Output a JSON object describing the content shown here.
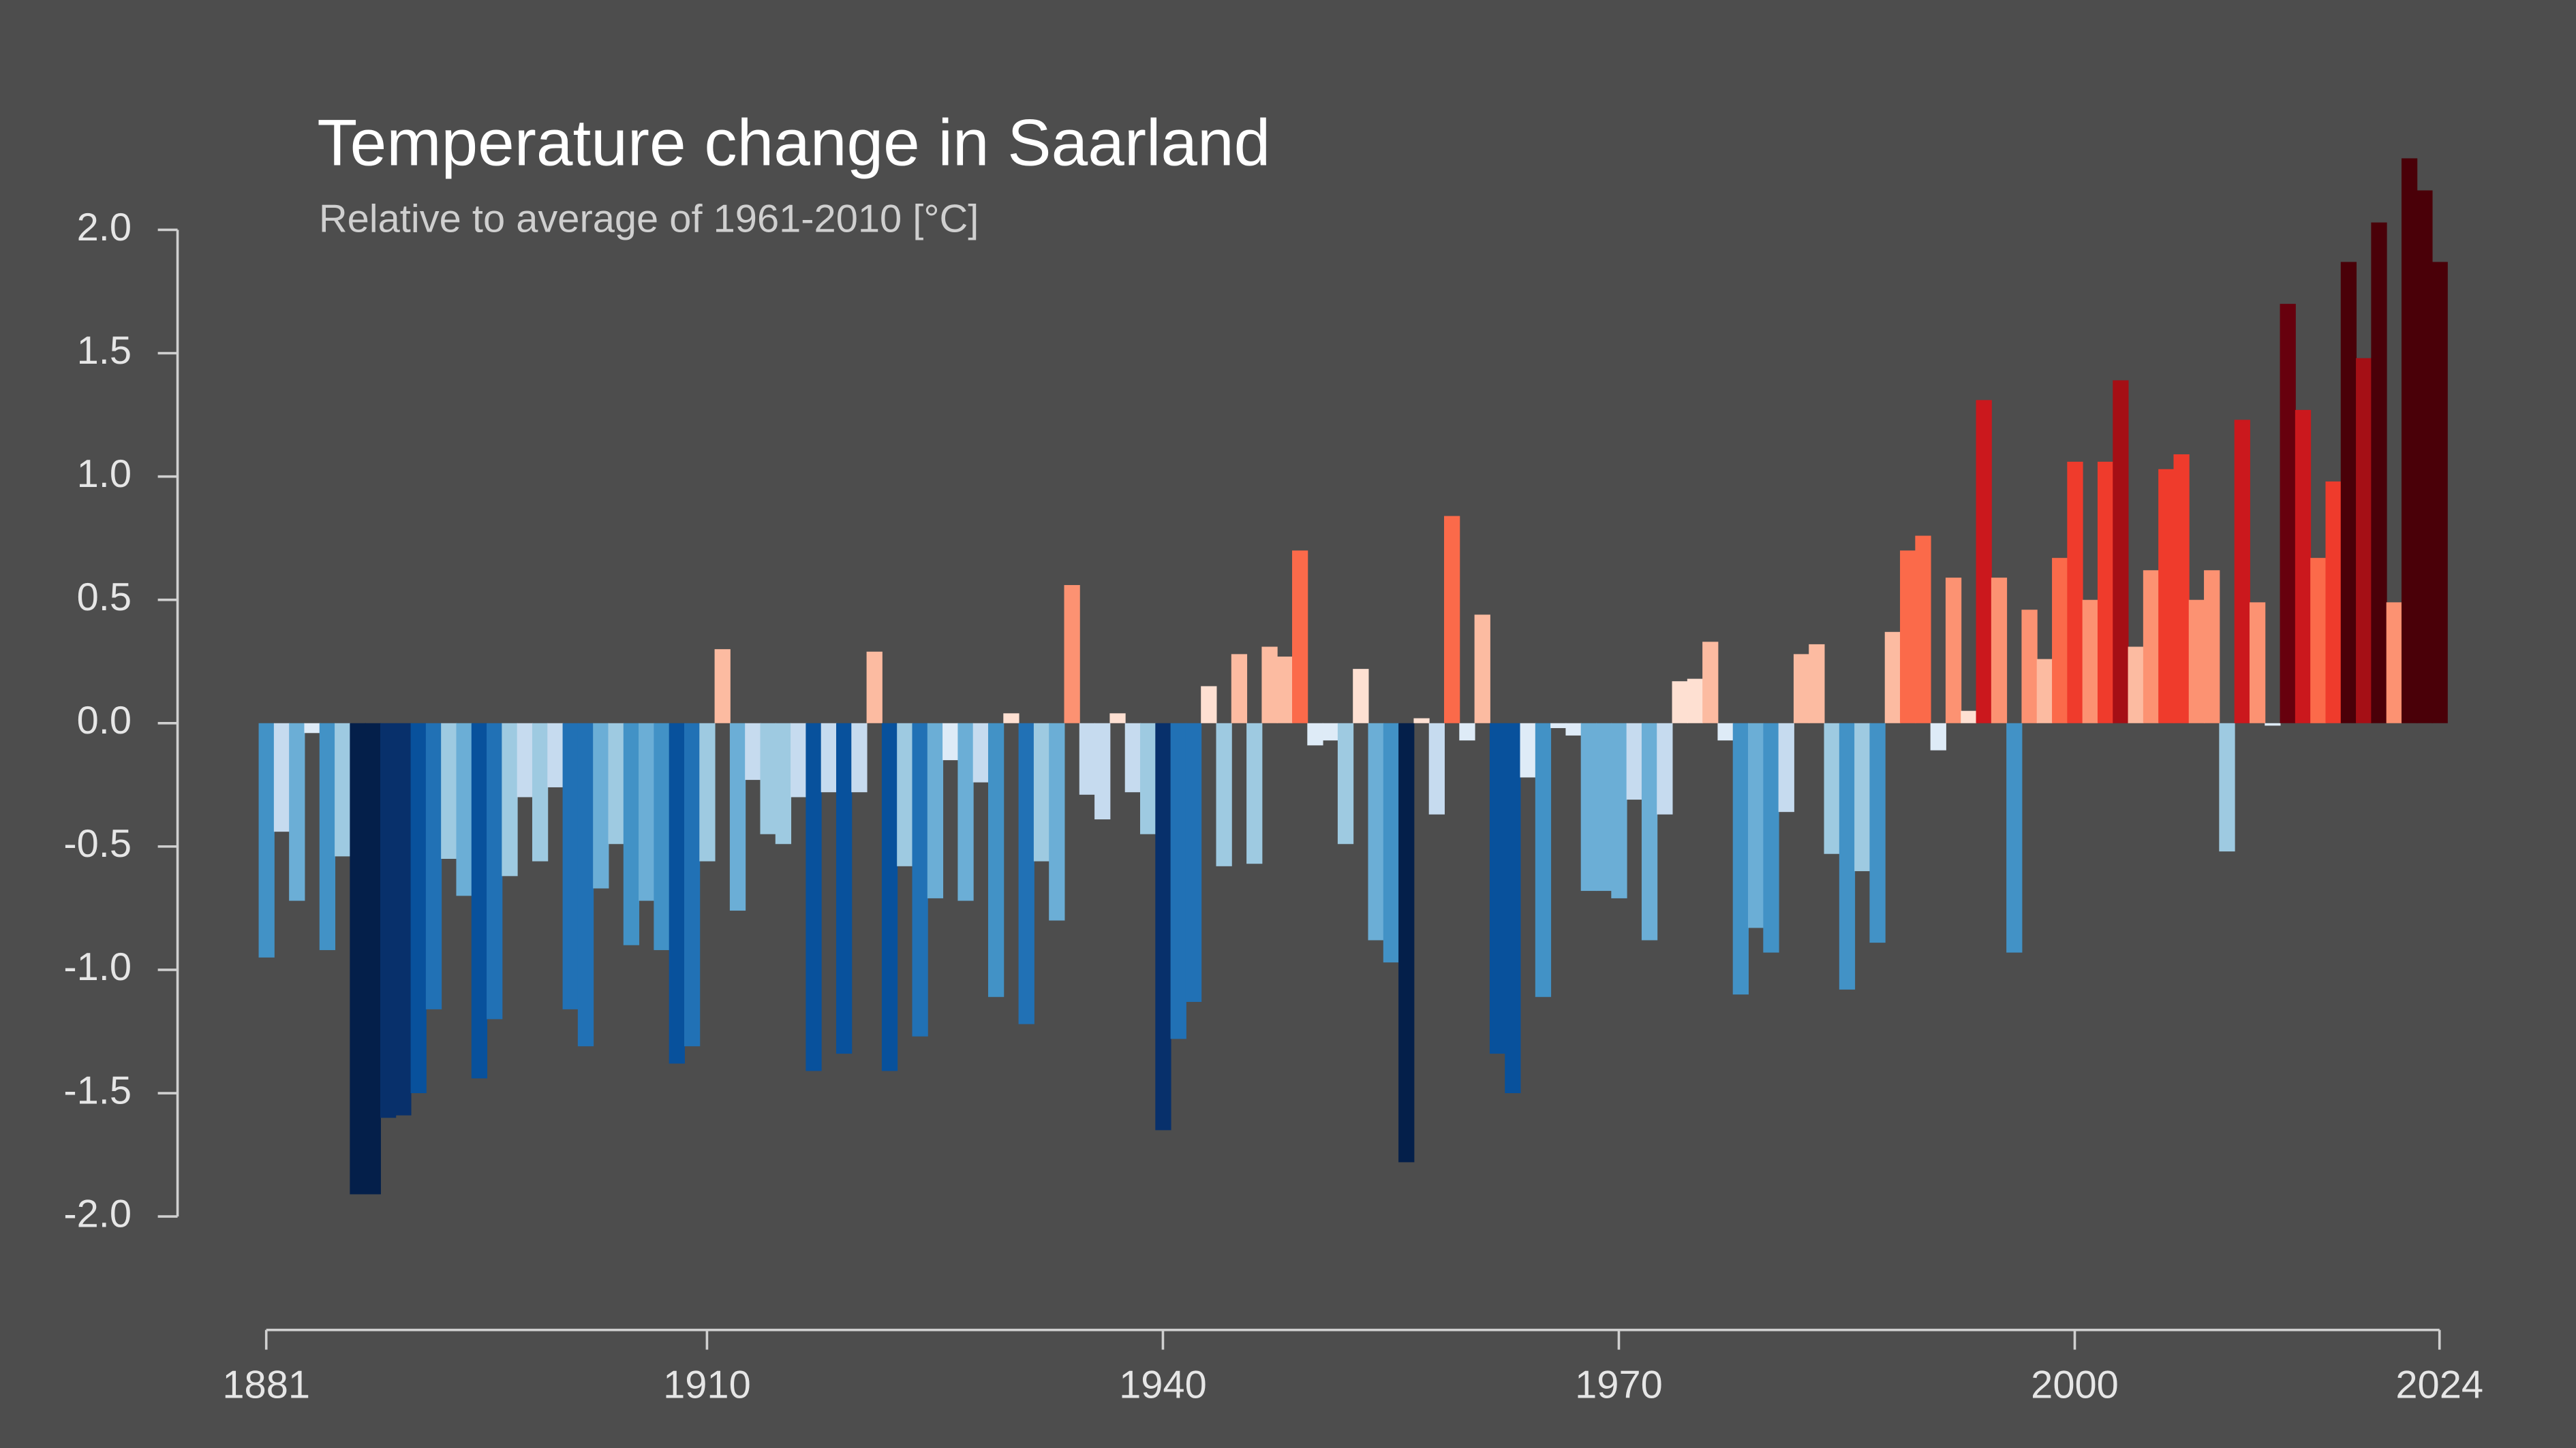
{
  "chart_data": {
    "type": "bar",
    "title": "Temperature change in Saarland",
    "subtitle": "Relative to average of 1961-2010  [°C]",
    "x": [
      1881,
      1882,
      1883,
      1884,
      1885,
      1886,
      1887,
      1888,
      1889,
      1890,
      1891,
      1892,
      1893,
      1894,
      1895,
      1896,
      1897,
      1898,
      1899,
      1900,
      1901,
      1902,
      1903,
      1904,
      1905,
      1906,
      1907,
      1908,
      1909,
      1910,
      1911,
      1912,
      1913,
      1914,
      1915,
      1916,
      1917,
      1918,
      1919,
      1920,
      1921,
      1922,
      1923,
      1924,
      1925,
      1926,
      1927,
      1928,
      1929,
      1930,
      1931,
      1932,
      1933,
      1934,
      1935,
      1936,
      1937,
      1938,
      1939,
      1940,
      1941,
      1942,
      1943,
      1944,
      1945,
      1946,
      1947,
      1948,
      1949,
      1950,
      1951,
      1952,
      1953,
      1954,
      1955,
      1956,
      1957,
      1958,
      1959,
      1960,
      1961,
      1962,
      1963,
      1964,
      1965,
      1966,
      1967,
      1968,
      1969,
      1970,
      1971,
      1972,
      1973,
      1974,
      1975,
      1976,
      1977,
      1978,
      1979,
      1980,
      1981,
      1982,
      1983,
      1984,
      1985,
      1986,
      1987,
      1988,
      1989,
      1990,
      1991,
      1992,
      1993,
      1994,
      1995,
      1996,
      1997,
      1998,
      1999,
      2000,
      2001,
      2002,
      2003,
      2004,
      2005,
      2006,
      2007,
      2008,
      2009,
      2010,
      2011,
      2012,
      2013,
      2014,
      2015,
      2016,
      2017,
      2018,
      2019,
      2020,
      2021,
      2022,
      2023,
      2024
    ],
    "values": [
      -0.95,
      -0.44,
      -0.72,
      -0.04,
      -0.92,
      -0.54,
      -1.91,
      -1.91,
      -1.6,
      -1.59,
      -1.5,
      -1.16,
      -0.55,
      -0.7,
      -1.44,
      -1.2,
      -0.62,
      -0.3,
      -0.56,
      -0.26,
      -1.16,
      -1.31,
      -0.67,
      -0.49,
      -0.9,
      -0.72,
      -0.92,
      -1.38,
      -1.31,
      -0.56,
      0.3,
      -0.76,
      -0.23,
      -0.45,
      -0.49,
      -0.3,
      -1.41,
      -0.28,
      -1.34,
      -0.28,
      0.29,
      -1.41,
      -0.58,
      -1.27,
      -0.71,
      -0.15,
      -0.72,
      -0.24,
      -1.11,
      0.04,
      -1.22,
      -0.56,
      -0.8,
      0.56,
      -0.29,
      -0.39,
      0.04,
      -0.28,
      -0.45,
      -1.65,
      -1.28,
      -1.13,
      0.15,
      -0.58,
      0.28,
      -0.57,
      0.31,
      0.27,
      0.7,
      -0.09,
      -0.07,
      -0.49,
      0.22,
      -0.88,
      -0.97,
      -1.78,
      0.02,
      -0.37,
      0.84,
      -0.07,
      0.44,
      -1.34,
      -1.5,
      -0.22,
      -1.11,
      -0.02,
      -0.05,
      -0.68,
      -0.68,
      -0.71,
      -0.31,
      -0.88,
      -0.37,
      0.17,
      0.18,
      0.33,
      -0.07,
      -1.1,
      -0.83,
      -0.93,
      -0.36,
      0.28,
      0.32,
      -0.53,
      -1.08,
      -0.6,
      -0.89,
      0.37,
      0.7,
      0.76,
      -0.11,
      0.59,
      0.05,
      1.31,
      0.59,
      -0.93,
      0.46,
      0.26,
      0.67,
      1.06,
      0.5,
      1.06,
      1.39,
      0.31,
      0.62,
      1.03,
      1.09,
      0.5,
      0.62,
      -0.52,
      1.23,
      0.49,
      -0.01,
      1.7,
      1.27,
      0.67,
      0.98,
      1.87,
      1.48,
      2.03,
      0.49,
      2.29,
      2.16,
      1.87
    ],
    "colormap": [
      "#041f4a",
      "#08306b",
      "#08519c",
      "#2171b5",
      "#4292c6",
      "#6baed6",
      "#9ecae1",
      "#c6dbef",
      "#deebf7",
      "#fee0d2",
      "#fcbba1",
      "#fc9272",
      "#fb6a4a",
      "#ef3b2c",
      "#cb181d",
      "#a50f15",
      "#67000d",
      "#4a0008"
    ],
    "color_range": [
      -2,
      2
    ],
    "xlim": [
      1881,
      2024
    ],
    "xticks": [
      1881,
      1910,
      1940,
      1970,
      2000,
      2024
    ],
    "ylim": [
      -2.46,
      2.46
    ],
    "yticks": [
      {
        "value": -2,
        "label": "-2.0"
      },
      {
        "value": -1.5,
        "label": "-1.5"
      },
      {
        "value": -1,
        "label": "-1.0"
      },
      {
        "value": -0.5,
        "label": "-0.5"
      },
      {
        "value": 0,
        "label": "0.0"
      },
      {
        "value": 0.5,
        "label": "0.5"
      },
      {
        "value": 1,
        "label": "1.0"
      },
      {
        "value": 1.5,
        "label": "1.5"
      },
      {
        "value": 2,
        "label": "2.0"
      }
    ],
    "grid": false
  }
}
